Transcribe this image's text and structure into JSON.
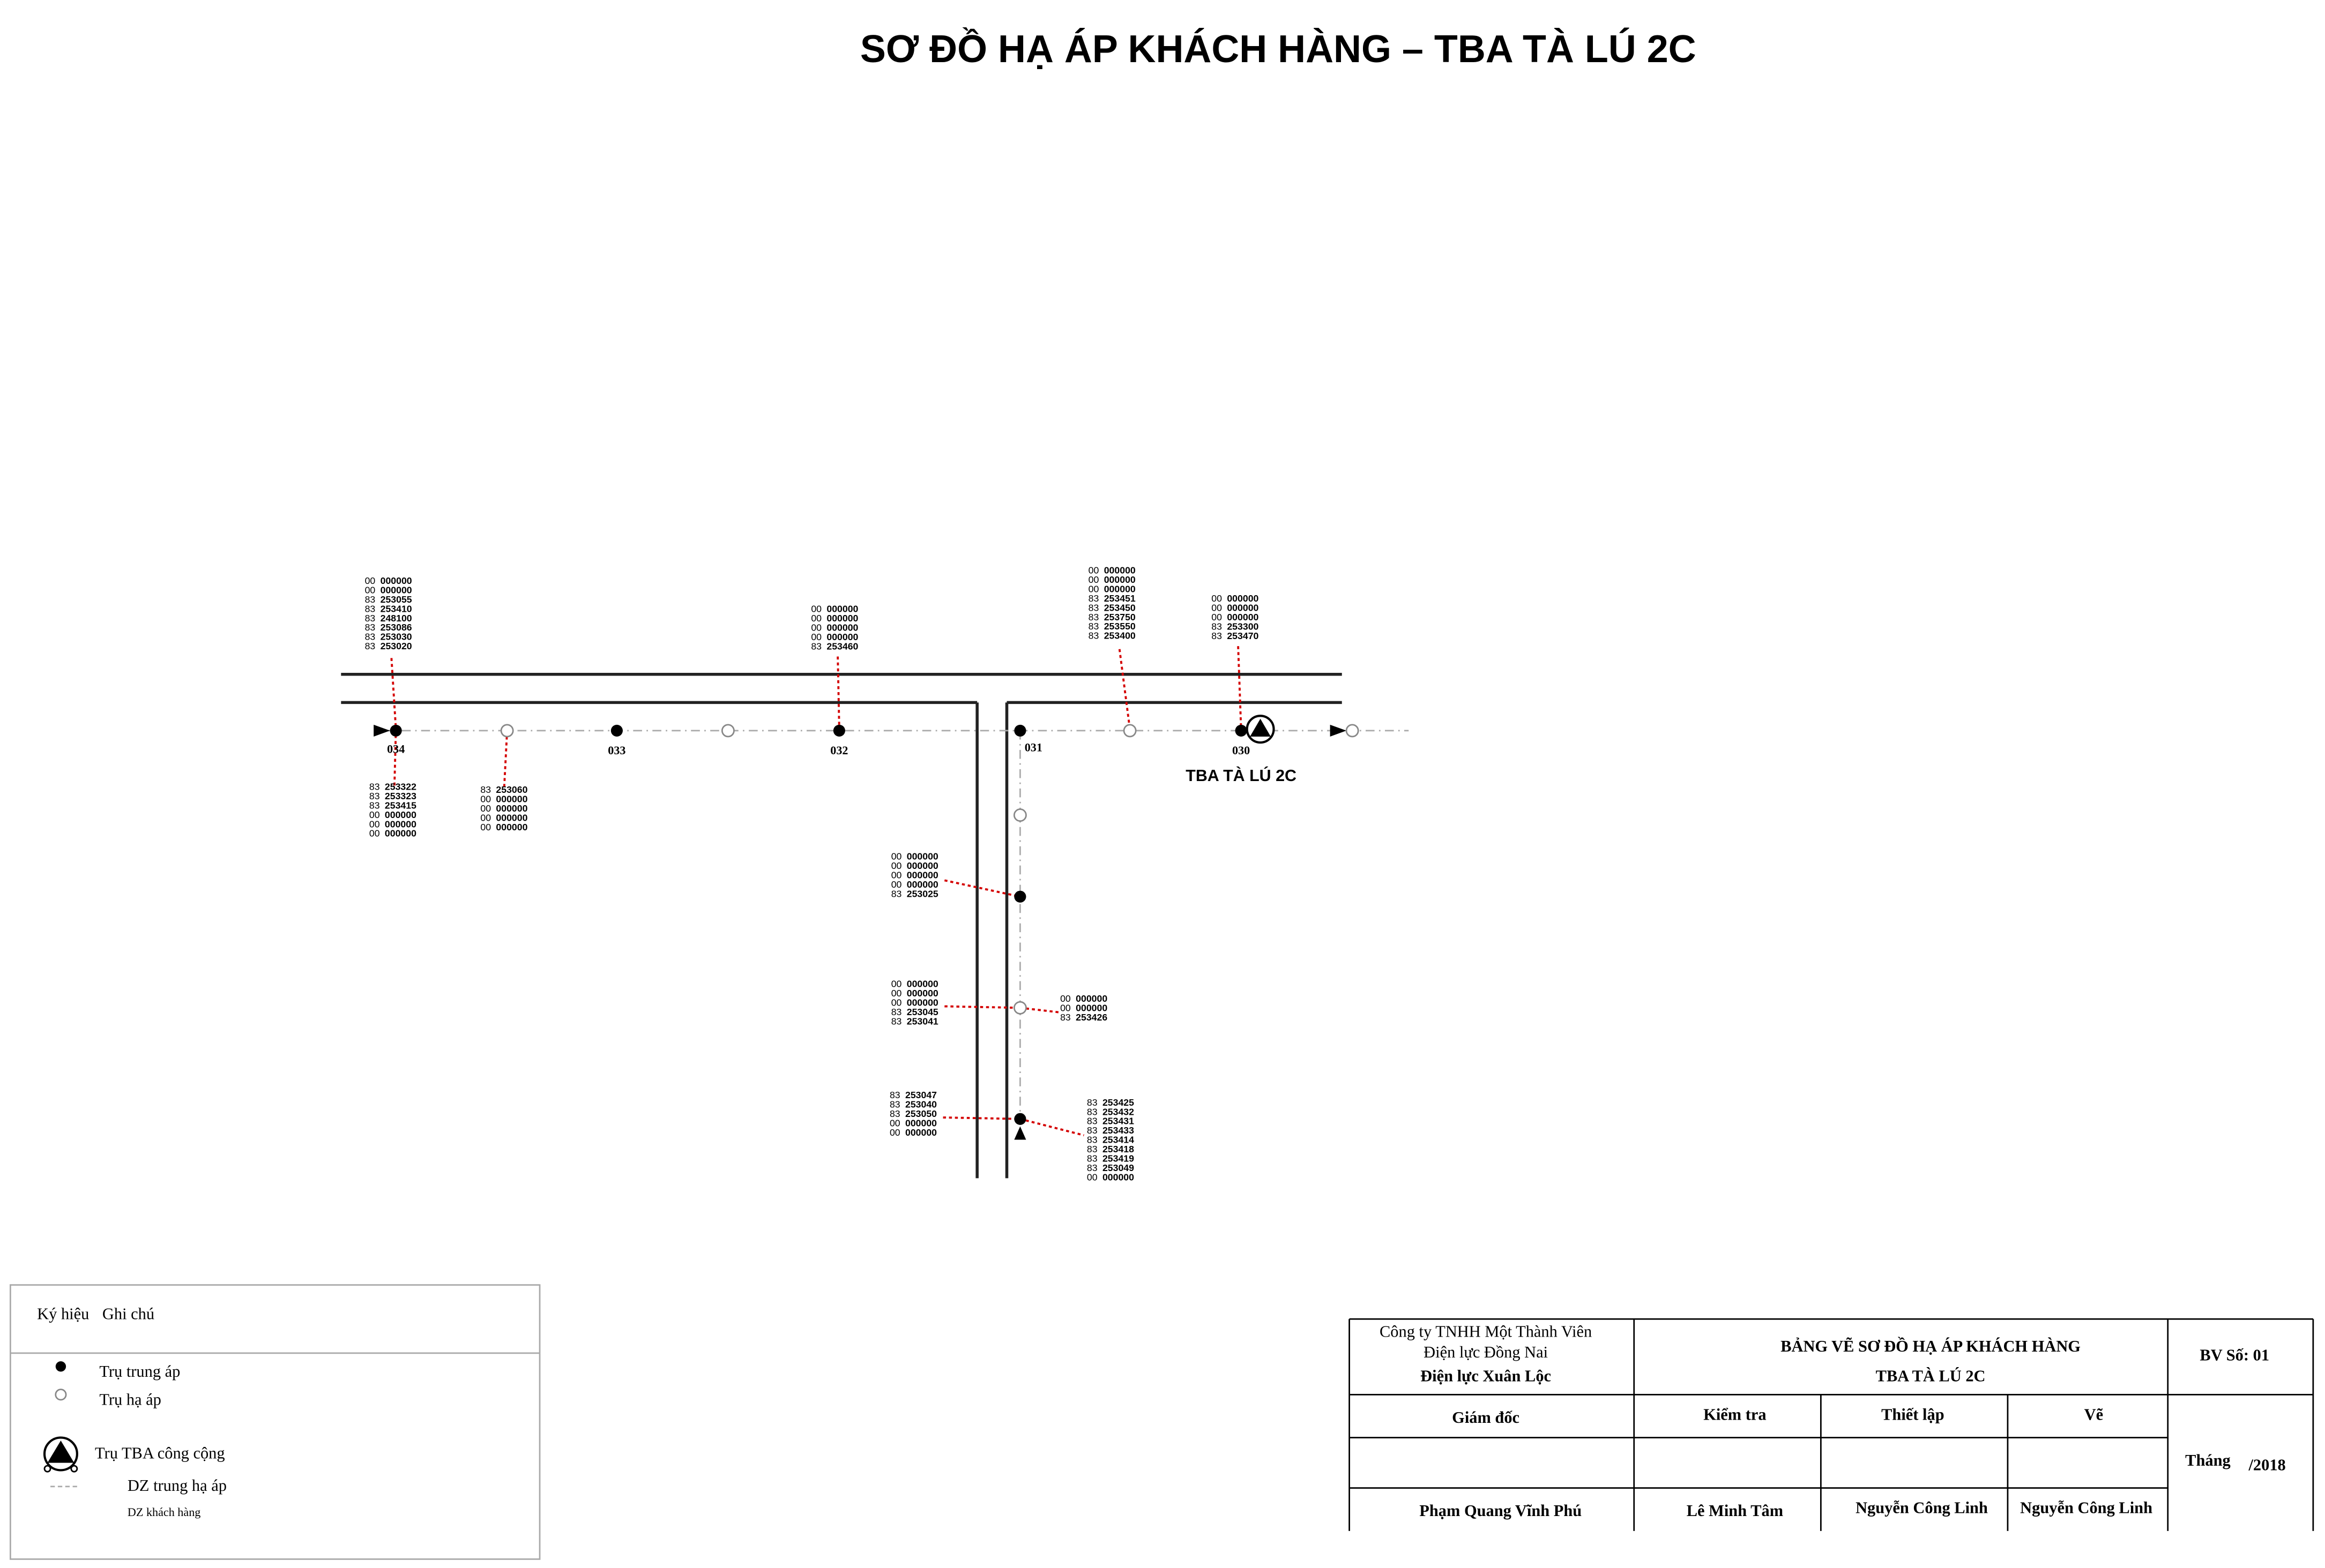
{
  "title": "SƠ ĐỒ HẠ ÁP KHÁCH HÀNG – TBA TÀ LÚ 2C",
  "station_label": "TBA TÀ LÚ 2C",
  "pole_labels": [
    "034",
    "033",
    "032",
    "031",
    "030"
  ],
  "meter_groups": [
    {
      "id": "g034-top",
      "lines": [
        [
          "00",
          "000000"
        ],
        [
          "00",
          "000000"
        ],
        [
          "83",
          "253055"
        ],
        [
          "83",
          "253410"
        ],
        [
          "83",
          "248100"
        ],
        [
          "83",
          "253086"
        ],
        [
          "83",
          "253030"
        ],
        [
          "83",
          "253020"
        ]
      ]
    },
    {
      "id": "g032-top",
      "lines": [
        [
          "00",
          "000000"
        ],
        [
          "00",
          "000000"
        ],
        [
          "00",
          "000000"
        ],
        [
          "00",
          "000000"
        ],
        [
          "83",
          "253460"
        ]
      ]
    },
    {
      "id": "g-mid-top",
      "lines": [
        [
          "00",
          "000000"
        ],
        [
          "00",
          "000000"
        ],
        [
          "00",
          "000000"
        ],
        [
          "83",
          "253451"
        ],
        [
          "83",
          "253450"
        ],
        [
          "83",
          "253750"
        ],
        [
          "83",
          "253550"
        ],
        [
          "83",
          "253400"
        ]
      ]
    },
    {
      "id": "g030-top",
      "lines": [
        [
          "00",
          "000000"
        ],
        [
          "00",
          "000000"
        ],
        [
          "00",
          "000000"
        ],
        [
          "83",
          "253300"
        ],
        [
          "83",
          "253470"
        ]
      ]
    },
    {
      "id": "g034-bot",
      "lines": [
        [
          "83",
          "253322"
        ],
        [
          "83",
          "253323"
        ],
        [
          "83",
          "253415"
        ],
        [
          "00",
          "000000"
        ],
        [
          "00",
          "000000"
        ],
        [
          "00",
          "000000"
        ]
      ]
    },
    {
      "id": "g-lv1-bot",
      "lines": [
        [
          "83",
          "253060"
        ],
        [
          "00",
          "000000"
        ],
        [
          "00",
          "000000"
        ],
        [
          "00",
          "000000"
        ],
        [
          "00",
          "000000"
        ]
      ]
    },
    {
      "id": "g-v1-left",
      "lines": [
        [
          "00",
          "000000"
        ],
        [
          "00",
          "000000"
        ],
        [
          "00",
          "000000"
        ],
        [
          "00",
          "000000"
        ],
        [
          "83",
          "253025"
        ]
      ]
    },
    {
      "id": "g-v2-left",
      "lines": [
        [
          "00",
          "000000"
        ],
        [
          "00",
          "000000"
        ],
        [
          "00",
          "000000"
        ],
        [
          "83",
          "253045"
        ],
        [
          "83",
          "253041"
        ]
      ]
    },
    {
      "id": "g-v2-right",
      "lines": [
        [
          "00",
          "000000"
        ],
        [
          "00",
          "000000"
        ],
        [
          "83",
          "253426"
        ]
      ]
    },
    {
      "id": "g-v3-left",
      "lines": [
        [
          "83",
          "253047"
        ],
        [
          "83",
          "253040"
        ],
        [
          "83",
          "253050"
        ],
        [
          "00",
          "000000"
        ],
        [
          "00",
          "000000"
        ]
      ]
    },
    {
      "id": "g-v3-right",
      "lines": [
        [
          "83",
          "253425"
        ],
        [
          "83",
          "253432"
        ],
        [
          "83",
          "253431"
        ],
        [
          "83",
          "253433"
        ],
        [
          "83",
          "253414"
        ],
        [
          "83",
          "253418"
        ],
        [
          "83",
          "253419"
        ],
        [
          "83",
          "253049"
        ],
        [
          "00",
          "000000"
        ]
      ]
    }
  ],
  "legend": {
    "header_symbol": "Ký hiệu",
    "header_note": "Ghi chú",
    "items": [
      {
        "icon": "filled-dot",
        "label": "Trụ trung áp"
      },
      {
        "icon": "hollow-dot",
        "label": "Trụ hạ áp"
      },
      {
        "icon": "triangle-circle",
        "label": "Trụ TBA công cộng"
      },
      {
        "icon": "dashed-gray",
        "label": "DZ trung hạ áp"
      },
      {
        "icon": "none",
        "label": "DZ khách hàng"
      }
    ]
  },
  "title_block": {
    "company_line1": "Công ty TNHH Một Thành Viên",
    "company_line2": "Điện lực Đồng Nai",
    "company_line3": "Điện lực Xuân Lộc",
    "drawing_title1": "BẢNG VẼ SƠ ĐỒ HẠ ÁP KHÁCH HÀNG",
    "drawing_title2": "TBA TÀ LÚ 2C",
    "sheet_no": "BV Số: 01",
    "col_director": "Giám đốc",
    "col_check": "Kiểm tra",
    "col_setup": "Thiết lập",
    "col_draw": "Vẽ",
    "name_director": "Phạm Quang Vĩnh Phú",
    "name_check": "Lê Minh Tâm",
    "name_setup": "Nguyễn Công Linh",
    "name_draw": "Nguyễn Công Linh",
    "month_label": "Tháng",
    "year": "/2018"
  },
  "colors": {
    "line": "#222222",
    "dash": "#aaaaaa",
    "customer_link": "#d40000",
    "text": "#000000"
  }
}
